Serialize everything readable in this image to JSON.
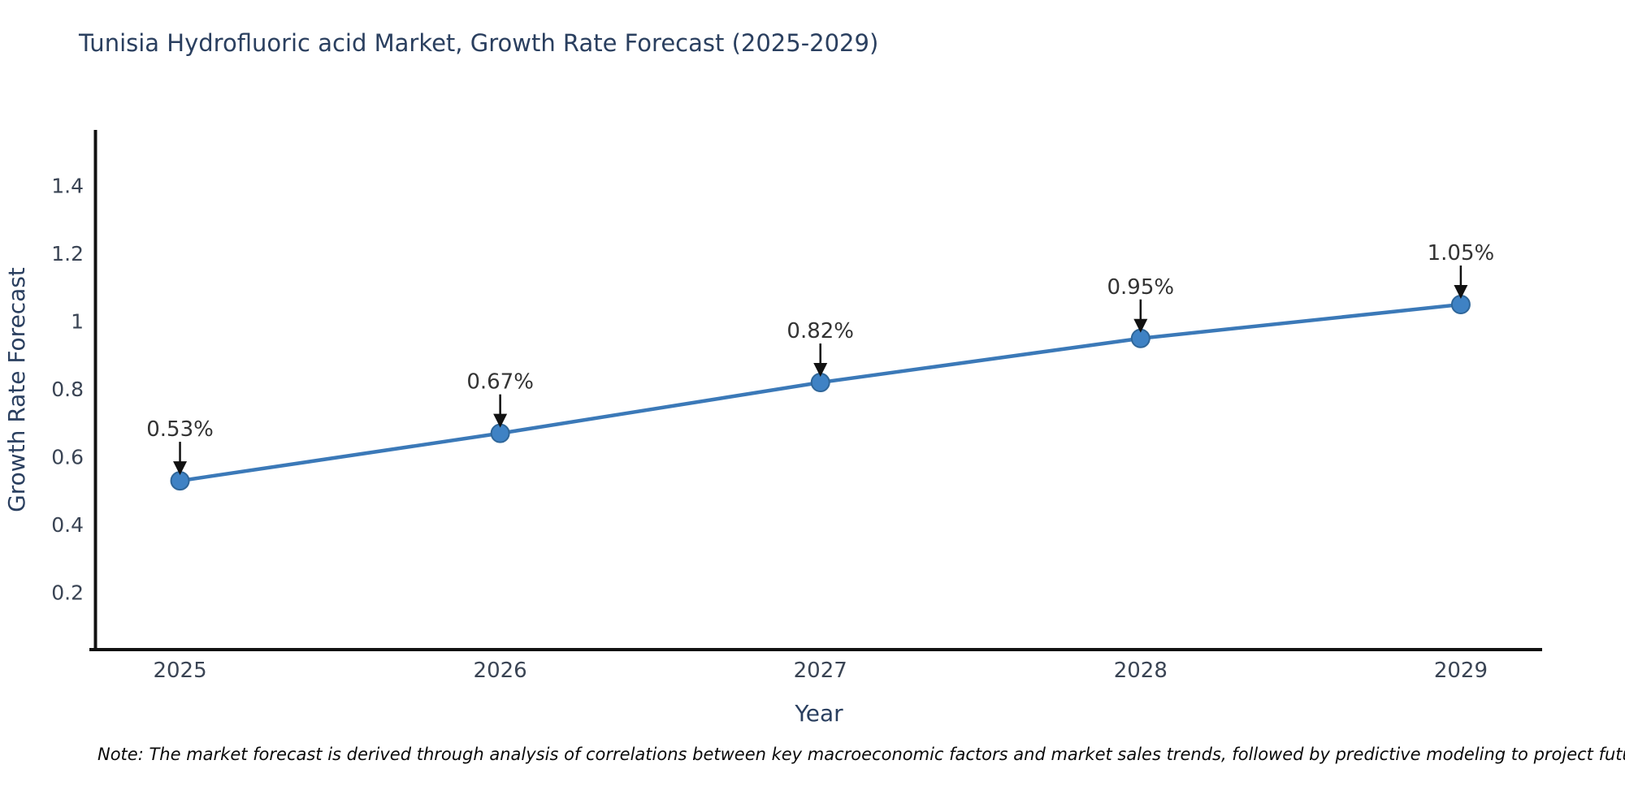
{
  "title": "Tunisia Hydrofluoric acid Market, Growth Rate Forecast (2025-2029)",
  "note": "Note: The market forecast is derived through analysis of correlations between key macroeconomic factors and market sales trends, followed by predictive modeling to project future sales",
  "chart_data": {
    "type": "line",
    "title": "Tunisia Hydrofluoric acid Market, Growth Rate Forecast (2025-2029)",
    "xlabel": "Year",
    "ylabel": "Growth Rate Forecast",
    "x": [
      2025,
      2026,
      2027,
      2028,
      2029
    ],
    "values": [
      0.53,
      0.67,
      0.82,
      0.95,
      1.05
    ],
    "point_labels": [
      "0.53%",
      "0.67%",
      "0.82%",
      "0.95%",
      "1.05%"
    ],
    "series_name": "Growth Rate Forecast",
    "xtick_labels": [
      "2025",
      "2026",
      "2027",
      "2028",
      "2029"
    ],
    "yticks": [
      0.2,
      0.4,
      0.6,
      0.8,
      1,
      1.2,
      1.4
    ],
    "ytick_labels": [
      "0.2",
      "0.4",
      "0.6",
      "0.8",
      "1",
      "1.2",
      "1.4"
    ],
    "xlim": [
      2024.736,
      2029.254
    ],
    "ylim": [
      0.032,
      1.565
    ],
    "grid": false,
    "legend": "none",
    "annotations": "black arrows pointing down to each marker",
    "colors": {
      "line": "#3b79b8",
      "marker_fill": "#3f82c4",
      "marker_edge": "#2f6699",
      "axis_spine": "#111111",
      "tick_label": "#3a4454",
      "axis_label": "#2a3f5f",
      "annotation_text": "#333333",
      "arrow": "#111111",
      "background": "#ffffff"
    }
  }
}
